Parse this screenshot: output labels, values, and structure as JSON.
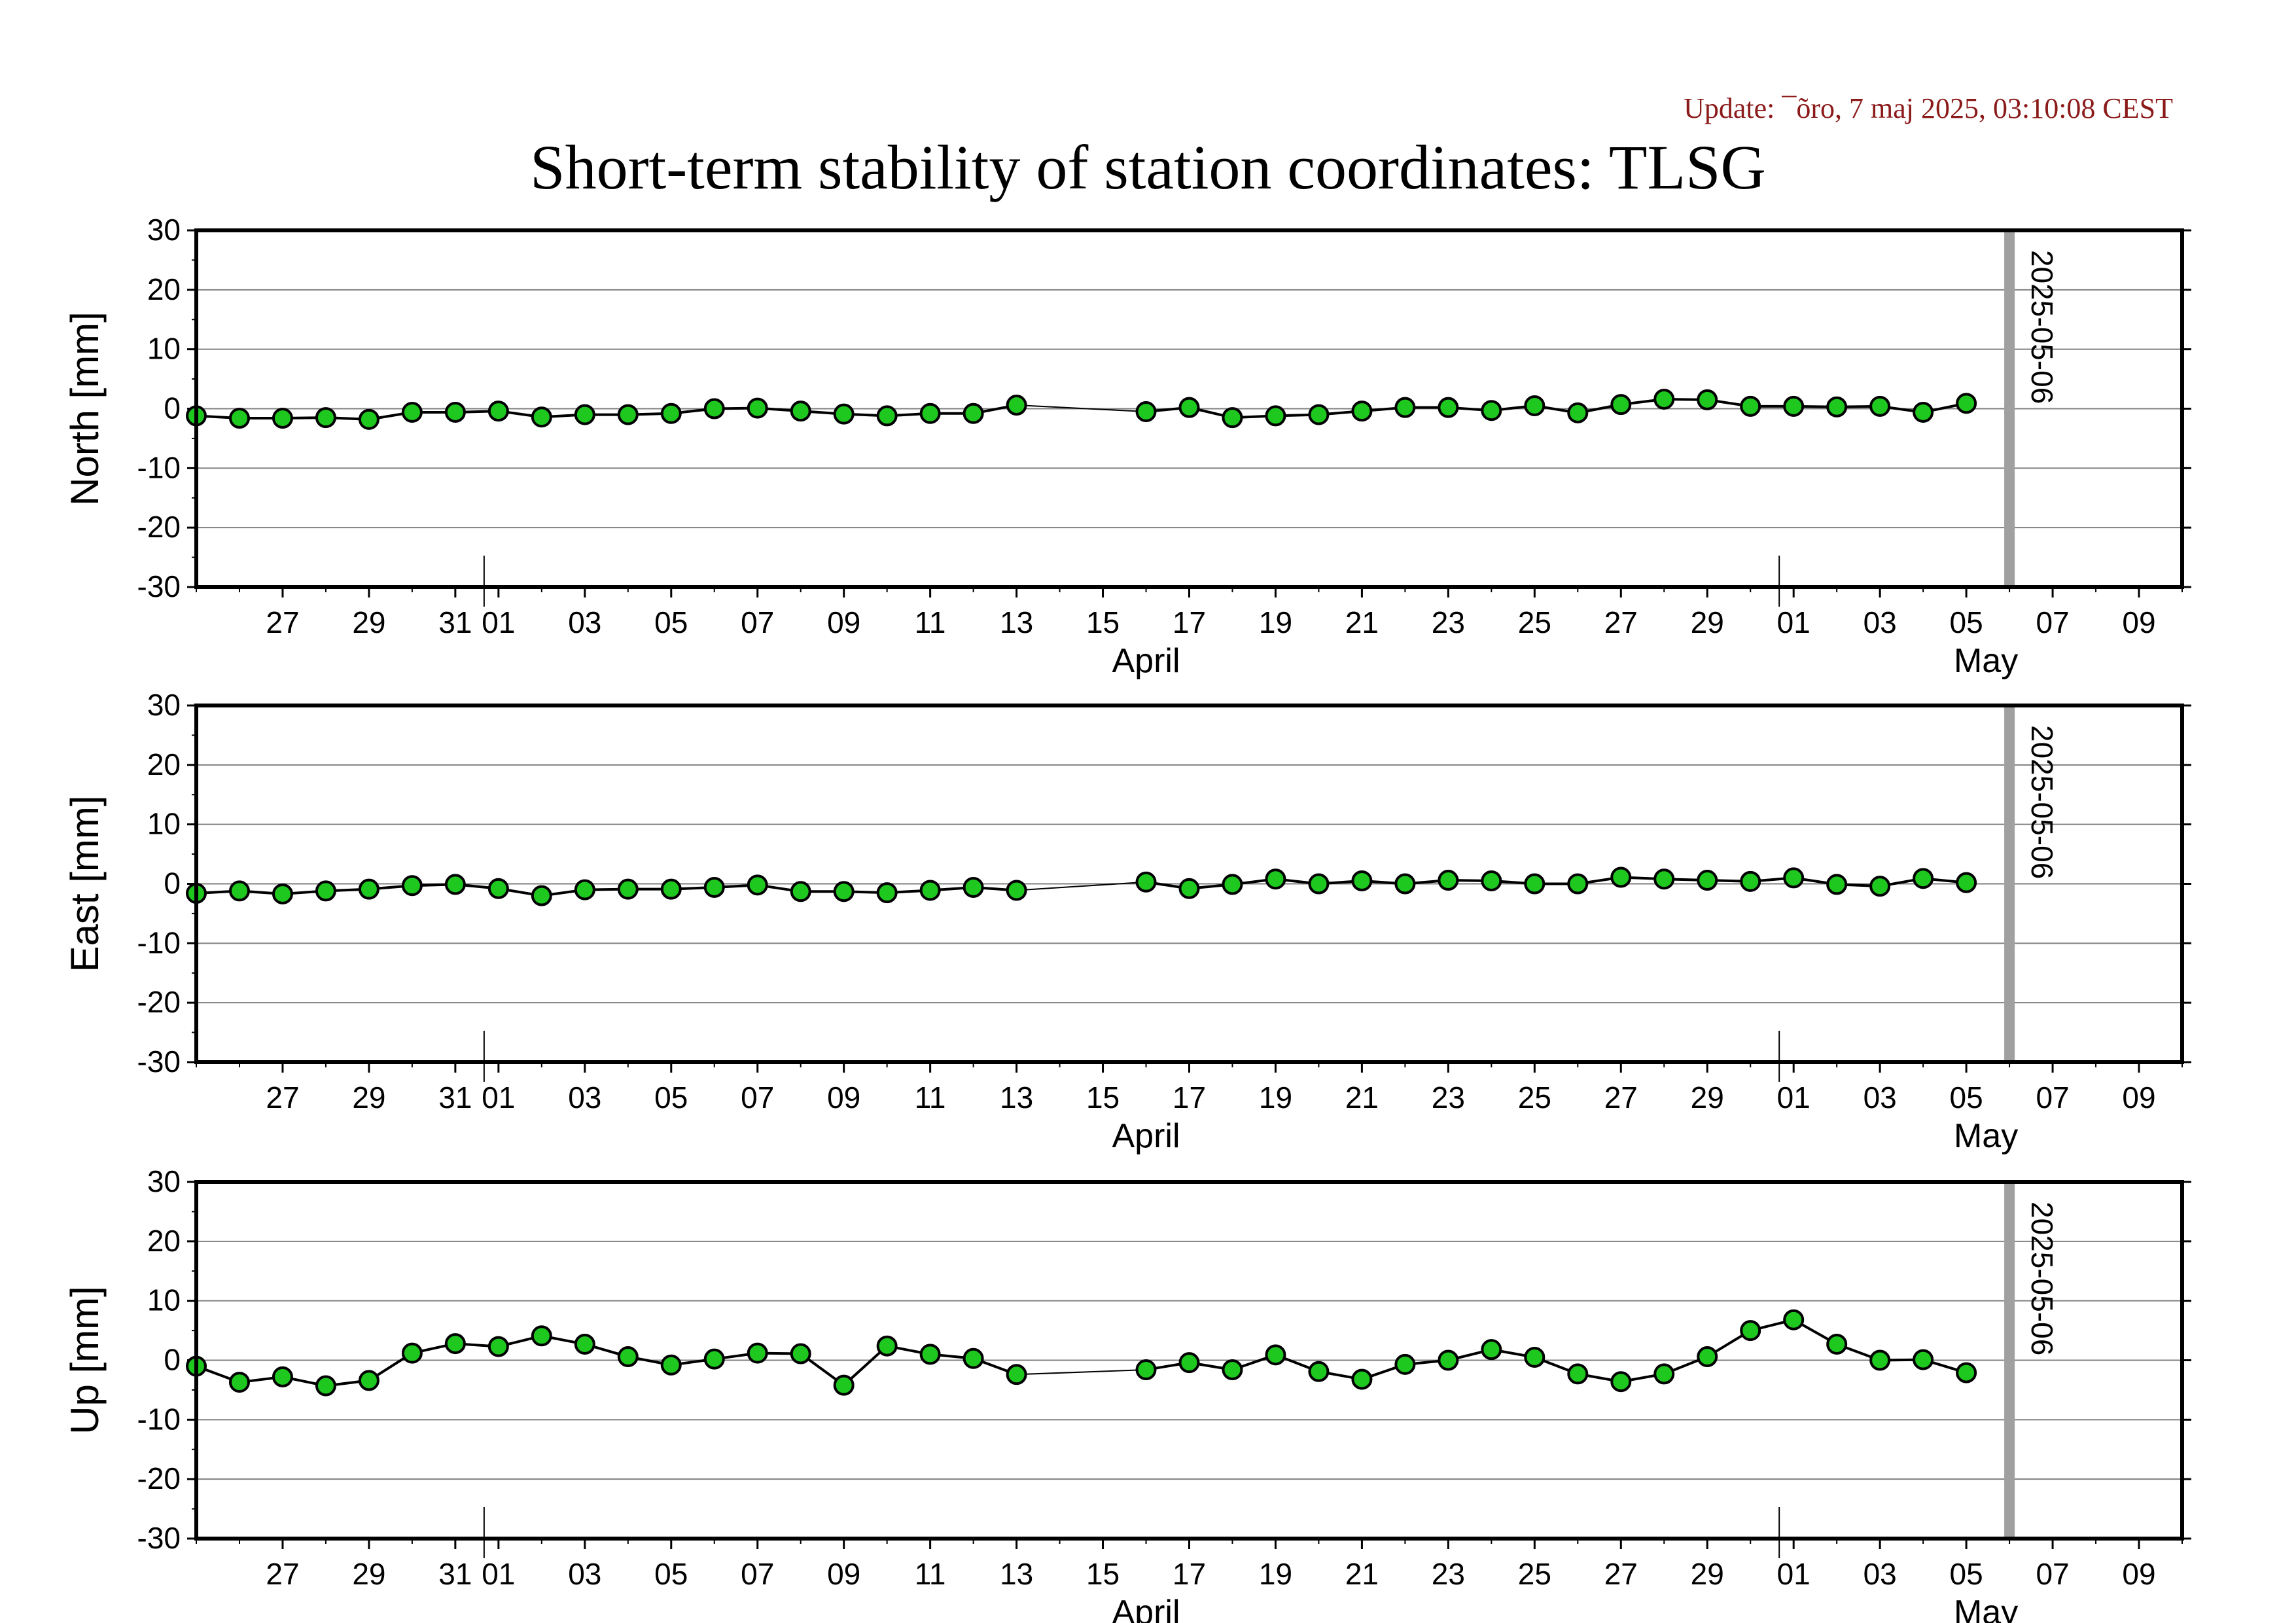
{
  "header": {
    "update": "Update: ¯õro, 7 maj 2025, 03:10:08 CEST",
    "title": "Short-term stability of station coordinates: TLSG"
  },
  "colors": {
    "marker_fill": "#1ec81e",
    "marker_stroke": "#000000",
    "line": "#000000",
    "grid": "#808080",
    "marker_band": "#a0a0a0"
  },
  "chart_data": [
    {
      "type": "line",
      "ylabel": "North [mm]",
      "ylim": [
        -30,
        30
      ],
      "yticks": [
        30,
        20,
        10,
        0,
        -10,
        -20,
        -30
      ],
      "xlim": [
        "2025-03-25",
        "2025-05-10"
      ],
      "grid": "horizontal",
      "vline": {
        "date": "2025-05-06",
        "label": "2025-05-06"
      },
      "x": [
        "2025-03-25",
        "2025-03-26",
        "2025-03-27",
        "2025-03-28",
        "2025-03-29",
        "2025-03-30",
        "2025-03-31",
        "2025-04-01",
        "2025-04-02",
        "2025-04-03",
        "2025-04-04",
        "2025-04-05",
        "2025-04-06",
        "2025-04-07",
        "2025-04-08",
        "2025-04-09",
        "2025-04-10",
        "2025-04-11",
        "2025-04-12",
        "2025-04-13",
        "2025-04-16",
        "2025-04-17",
        "2025-04-18",
        "2025-04-19",
        "2025-04-20",
        "2025-04-21",
        "2025-04-22",
        "2025-04-23",
        "2025-04-24",
        "2025-04-25",
        "2025-04-26",
        "2025-04-27",
        "2025-04-28",
        "2025-04-29",
        "2025-04-30",
        "2025-05-01",
        "2025-05-02",
        "2025-05-03",
        "2025-05-04",
        "2025-05-05"
      ],
      "y": [
        -1.2,
        -1.6,
        -1.6,
        -1.5,
        -1.8,
        -0.6,
        -0.6,
        -0.4,
        -1.4,
        -1.0,
        -1.0,
        -0.8,
        0.0,
        0.1,
        -0.4,
        -0.9,
        -1.2,
        -0.8,
        -0.8,
        0.6,
        -0.5,
        0.2,
        -1.5,
        -1.2,
        -1.0,
        -0.4,
        0.2,
        0.2,
        -0.3,
        0.5,
        -0.7,
        0.7,
        1.6,
        1.5,
        0.4,
        0.4,
        0.3,
        0.4,
        -0.6,
        0.9
      ]
    },
    {
      "type": "line",
      "ylabel": "East [mm]",
      "ylim": [
        -30,
        30
      ],
      "yticks": [
        30,
        20,
        10,
        0,
        -10,
        -20,
        -30
      ],
      "xlim": [
        "2025-03-25",
        "2025-05-10"
      ],
      "grid": "horizontal",
      "vline": {
        "date": "2025-05-06",
        "label": "2025-05-06"
      },
      "x": [
        "2025-03-25",
        "2025-03-26",
        "2025-03-27",
        "2025-03-28",
        "2025-03-29",
        "2025-03-30",
        "2025-03-31",
        "2025-04-01",
        "2025-04-02",
        "2025-04-03",
        "2025-04-04",
        "2025-04-05",
        "2025-04-06",
        "2025-04-07",
        "2025-04-08",
        "2025-04-09",
        "2025-04-10",
        "2025-04-11",
        "2025-04-12",
        "2025-04-13",
        "2025-04-16",
        "2025-04-17",
        "2025-04-18",
        "2025-04-19",
        "2025-04-20",
        "2025-04-21",
        "2025-04-22",
        "2025-04-23",
        "2025-04-24",
        "2025-04-25",
        "2025-04-26",
        "2025-04-27",
        "2025-04-28",
        "2025-04-29",
        "2025-04-30",
        "2025-05-01",
        "2025-05-02",
        "2025-05-03",
        "2025-05-04",
        "2025-05-05"
      ],
      "y": [
        -1.6,
        -1.2,
        -1.7,
        -1.2,
        -0.9,
        -0.3,
        -0.1,
        -0.8,
        -2.0,
        -1.0,
        -0.9,
        -0.9,
        -0.6,
        -0.2,
        -1.3,
        -1.3,
        -1.5,
        -1.1,
        -0.6,
        -1.1,
        0.3,
        -0.8,
        -0.1,
        0.8,
        0.0,
        0.5,
        0.0,
        0.6,
        0.5,
        0.0,
        0.0,
        1.1,
        0.8,
        0.6,
        0.4,
        1.0,
        -0.1,
        -0.4,
        0.9,
        0.2
      ]
    },
    {
      "type": "line",
      "ylabel": "Up [mm]",
      "ylim": [
        -30,
        30
      ],
      "yticks": [
        30,
        20,
        10,
        0,
        -10,
        -20,
        -30
      ],
      "xlim": [
        "2025-03-25",
        "2025-05-10"
      ],
      "grid": "horizontal",
      "vline": {
        "date": "2025-05-06",
        "label": "2025-05-06"
      },
      "x": [
        "2025-03-25",
        "2025-03-26",
        "2025-03-27",
        "2025-03-28",
        "2025-03-29",
        "2025-03-30",
        "2025-03-31",
        "2025-04-01",
        "2025-04-02",
        "2025-04-03",
        "2025-04-04",
        "2025-04-05",
        "2025-04-06",
        "2025-04-07",
        "2025-04-08",
        "2025-04-09",
        "2025-04-10",
        "2025-04-11",
        "2025-04-12",
        "2025-04-13",
        "2025-04-16",
        "2025-04-17",
        "2025-04-18",
        "2025-04-19",
        "2025-04-20",
        "2025-04-21",
        "2025-04-22",
        "2025-04-23",
        "2025-04-24",
        "2025-04-25",
        "2025-04-26",
        "2025-04-27",
        "2025-04-28",
        "2025-04-29",
        "2025-04-30",
        "2025-05-01",
        "2025-05-02",
        "2025-05-03",
        "2025-05-04",
        "2025-05-05"
      ],
      "y": [
        -1.0,
        -3.7,
        -2.8,
        -4.3,
        -3.4,
        1.2,
        2.8,
        2.3,
        4.1,
        2.7,
        0.6,
        -0.8,
        0.2,
        1.2,
        1.1,
        -4.2,
        2.4,
        1.0,
        0.3,
        -2.4,
        -1.6,
        -0.4,
        -1.6,
        0.9,
        -1.9,
        -3.2,
        -0.7,
        0.0,
        1.8,
        0.5,
        -2.3,
        -3.6,
        -2.3,
        0.6,
        5.0,
        6.8,
        2.7,
        0.0,
        0.1,
        -2.1
      ]
    }
  ],
  "x_axis": {
    "tick_labels": [
      "27",
      "29",
      "31",
      "01",
      "03",
      "05",
      "07",
      "09",
      "11",
      "13",
      "15",
      "17",
      "19",
      "21",
      "23",
      "25",
      "27",
      "29",
      "01",
      "03",
      "05",
      "07",
      "09"
    ],
    "month_labels": [
      "April",
      "May"
    ]
  }
}
